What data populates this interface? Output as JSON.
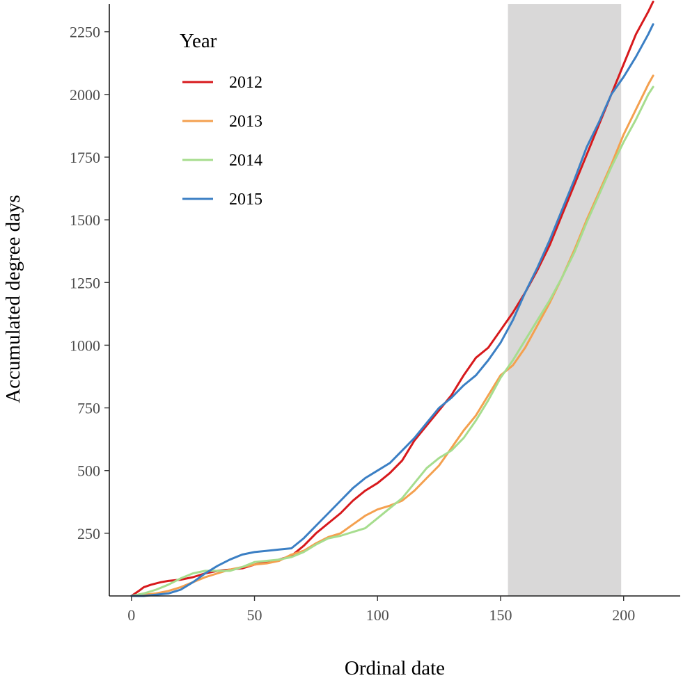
{
  "chart_data": {
    "type": "line",
    "xlabel": "Ordinal date",
    "ylabel": "Accumulated degree days",
    "xlim": [
      -9,
      223
    ],
    "ylim": [
      0,
      2360
    ],
    "xticks": [
      0,
      50,
      100,
      150,
      200
    ],
    "yticks": [
      250,
      500,
      750,
      1000,
      1250,
      1500,
      1750,
      2000,
      2250
    ],
    "grid": false,
    "shaded_region": {
      "x_start": 153,
      "x_end": 199,
      "color": "#d9d8d8"
    },
    "legend": {
      "title": "Year",
      "position": "top-left"
    },
    "series": [
      {
        "name": "2012",
        "color": "#d7191c",
        "x": [
          0,
          3,
          5,
          8,
          12,
          15,
          20,
          25,
          30,
          35,
          40,
          45,
          50,
          55,
          60,
          65,
          70,
          75,
          80,
          85,
          90,
          95,
          100,
          105,
          110,
          115,
          120,
          125,
          130,
          135,
          140,
          145,
          150,
          155,
          160,
          165,
          170,
          175,
          180,
          185,
          190,
          195,
          200,
          205,
          210,
          212
        ],
        "values": [
          0,
          20,
          35,
          45,
          55,
          60,
          65,
          75,
          90,
          100,
          105,
          110,
          125,
          135,
          145,
          160,
          200,
          250,
          290,
          330,
          380,
          420,
          450,
          490,
          540,
          620,
          680,
          740,
          800,
          880,
          950,
          990,
          1060,
          1130,
          1210,
          1300,
          1400,
          1520,
          1640,
          1760,
          1880,
          2000,
          2120,
          2240,
          2330,
          2370
        ]
      },
      {
        "name": "2013",
        "color": "#f4a04f",
        "x": [
          0,
          5,
          10,
          15,
          20,
          25,
          30,
          35,
          40,
          45,
          50,
          55,
          60,
          65,
          70,
          75,
          80,
          85,
          90,
          95,
          100,
          105,
          110,
          115,
          120,
          125,
          130,
          135,
          140,
          145,
          150,
          155,
          160,
          165,
          170,
          175,
          180,
          185,
          190,
          195,
          200,
          205,
          210,
          212
        ],
        "values": [
          0,
          5,
          10,
          20,
          35,
          55,
          75,
          90,
          105,
          115,
          125,
          130,
          140,
          165,
          180,
          210,
          235,
          250,
          285,
          320,
          345,
          360,
          380,
          420,
          470,
          520,
          590,
          660,
          720,
          800,
          880,
          920,
          990,
          1080,
          1170,
          1270,
          1380,
          1500,
          1610,
          1720,
          1840,
          1940,
          2040,
          2075
        ]
      },
      {
        "name": "2014",
        "color": "#a6dd8e",
        "x": [
          0,
          5,
          10,
          15,
          20,
          25,
          30,
          35,
          40,
          45,
          50,
          55,
          60,
          65,
          70,
          75,
          80,
          85,
          90,
          95,
          100,
          105,
          110,
          115,
          120,
          125,
          130,
          135,
          140,
          145,
          150,
          155,
          160,
          165,
          170,
          175,
          180,
          185,
          190,
          195,
          200,
          205,
          210,
          212
        ],
        "values": [
          0,
          10,
          25,
          45,
          70,
          90,
          100,
          100,
          100,
          115,
          135,
          140,
          145,
          155,
          175,
          205,
          230,
          240,
          255,
          270,
          310,
          350,
          390,
          450,
          510,
          550,
          580,
          630,
          700,
          780,
          870,
          940,
          1020,
          1100,
          1180,
          1270,
          1370,
          1490,
          1600,
          1710,
          1810,
          1900,
          2000,
          2030
        ]
      },
      {
        "name": "2015",
        "color": "#3b7fc4",
        "x": [
          0,
          5,
          10,
          15,
          20,
          25,
          30,
          35,
          40,
          45,
          50,
          55,
          60,
          65,
          70,
          75,
          80,
          85,
          90,
          95,
          100,
          105,
          110,
          115,
          120,
          125,
          130,
          135,
          140,
          145,
          150,
          155,
          160,
          165,
          170,
          175,
          180,
          185,
          190,
          195,
          200,
          205,
          210,
          212
        ],
        "values": [
          0,
          0,
          5,
          10,
          25,
          55,
          90,
          120,
          145,
          165,
          175,
          180,
          185,
          190,
          230,
          280,
          330,
          380,
          430,
          470,
          500,
          530,
          580,
          630,
          690,
          750,
          790,
          840,
          880,
          940,
          1010,
          1100,
          1210,
          1310,
          1420,
          1540,
          1660,
          1790,
          1890,
          2000,
          2070,
          2150,
          2240,
          2280
        ]
      }
    ]
  }
}
